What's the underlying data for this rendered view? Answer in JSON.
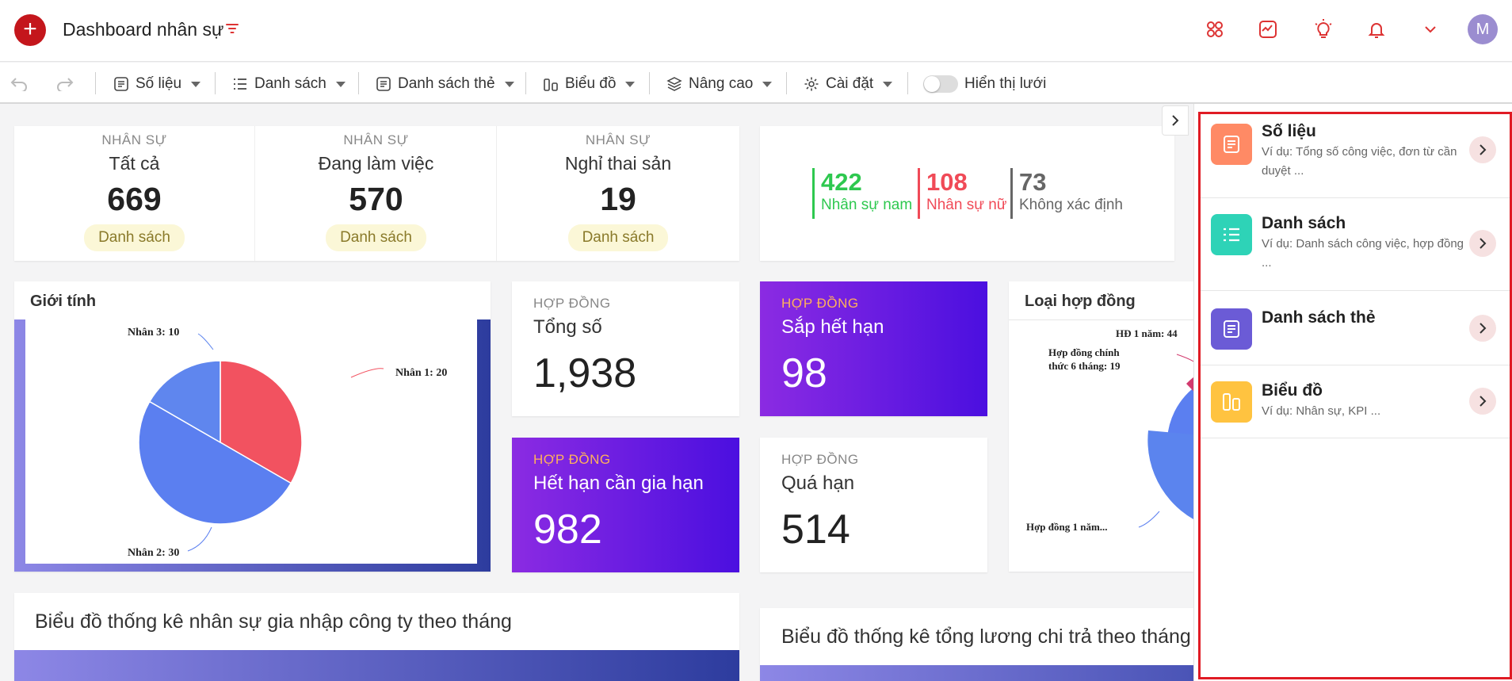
{
  "header": {
    "title": "Dashboard nhân sự",
    "avatar_initial": "M"
  },
  "toolbar": {
    "items": [
      {
        "label": "Số liệu",
        "icon": "document-icon"
      },
      {
        "label": "Danh sách",
        "icon": "list-icon"
      },
      {
        "label": "Danh sách thẻ",
        "icon": "card-list-icon"
      },
      {
        "label": "Biểu đồ",
        "icon": "chart-icon"
      },
      {
        "label": "Nâng cao",
        "icon": "layers-icon"
      },
      {
        "label": "Cài đặt",
        "icon": "gear-icon"
      }
    ],
    "grid_toggle_label": "Hiển thị lưới"
  },
  "staff_stats": [
    {
      "caption": "NHÂN SỰ",
      "title": "Tất cả",
      "value": "669",
      "button": "Danh sách"
    },
    {
      "caption": "NHÂN SỰ",
      "title": "Đang làm việc",
      "value": "570",
      "button": "Danh sách"
    },
    {
      "caption": "NHÂN SỰ",
      "title": "Nghỉ thai sản",
      "value": "19",
      "button": "Danh sách"
    }
  ],
  "gender_counts": [
    {
      "value": "422",
      "label": "Nhân sự nam",
      "color": "#2ec84f"
    },
    {
      "value": "108",
      "label": "Nhân sự nữ",
      "color": "#f04a57"
    },
    {
      "value": "73",
      "label": "Không xác định",
      "color": "#666666"
    }
  ],
  "gender_chart": {
    "heading": "Giới tính",
    "chart_data": {
      "type": "pie",
      "slices": [
        {
          "label": "Nhân 1: 20",
          "value": 20,
          "color": "#f25260"
        },
        {
          "label": "Nhân 2: 30",
          "value": 30,
          "color": "#5b7ff0"
        },
        {
          "label": "Nhân 3: 10",
          "value": 10,
          "color": "#5f86ee"
        }
      ]
    }
  },
  "contracts": [
    {
      "caption": "HỢP ĐỒNG",
      "title": "Tổng số",
      "value": "1,938"
    },
    {
      "caption": "HỢP ĐỒNG",
      "title": "Sắp hết hạn",
      "value": "98"
    },
    {
      "caption": "HỢP ĐỒNG",
      "title": "Hết hạn cần gia hạn",
      "value": "982"
    },
    {
      "caption": "HỢP ĐỒNG",
      "title": "Quá hạn",
      "value": "514"
    }
  ],
  "contract_type_chart": {
    "heading": "Loại hợp đồng",
    "labels": [
      "HĐ 1 năm: 44",
      "Hợp đồng chính",
      "thức 6 tháng: 19",
      "Hợp đồng 1 năm..."
    ]
  },
  "bottom_charts": {
    "left_title": "Biểu đồ thống kê nhân sự gia nhập công ty theo tháng",
    "right_title": "Biểu đồ thống kê tổng lương chi trả theo tháng"
  },
  "right_panel": {
    "items": [
      {
        "title": "Số liệu",
        "desc": "Ví dụ: Tổng số công việc, đơn từ cần duyệt ...",
        "color": "#ff8a65"
      },
      {
        "title": "Danh sách",
        "desc": "Ví dụ: Danh sách công việc, hợp đồng ...",
        "color": "#2ed3b7"
      },
      {
        "title": "Danh sách thẻ",
        "desc": "",
        "color": "#6b5bd6"
      },
      {
        "title": "Biểu đồ",
        "desc": "Ví dụ: Nhân sự, KPI ...",
        "color": "#ffc340"
      }
    ]
  }
}
